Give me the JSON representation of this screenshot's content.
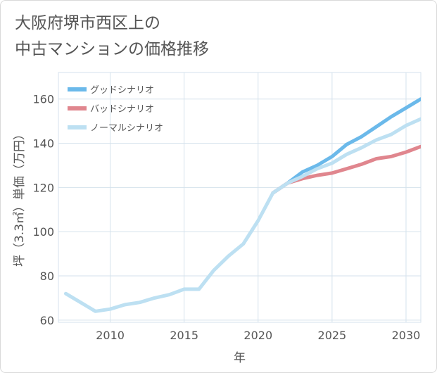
{
  "header": {
    "title_line1": "大阪府堺市西区上の",
    "title_line2": "中古マンションの価格推移"
  },
  "chart_data": {
    "type": "line",
    "title": "大阪府堺市西区上の中古マンションの価格推移",
    "xlabel": "年",
    "ylabel": "坪（3.3㎡）単価（万円）",
    "xlim": [
      2006.5,
      2031
    ],
    "ylim": [
      59,
      172
    ],
    "xticks": [
      2010,
      2015,
      2020,
      2025,
      2030
    ],
    "yticks": [
      60,
      80,
      100,
      120,
      140,
      160
    ],
    "grid": true,
    "legend_position": "top-left",
    "series": [
      {
        "name": "グッドシナリオ",
        "color": "#6bb9ea",
        "x": [
          2021,
          2022,
          2023,
          2024,
          2025,
          2026,
          2027,
          2028,
          2029,
          2030,
          2031
        ],
        "y": [
          117.5,
          122,
          127,
          130,
          134,
          139.5,
          143,
          147.5,
          152,
          156,
          160
        ]
      },
      {
        "name": "バッドシナリオ",
        "color": "#e0868e",
        "x": [
          2021,
          2022,
          2023,
          2024,
          2025,
          2026,
          2027,
          2028,
          2029,
          2030,
          2031
        ],
        "y": [
          117.5,
          122,
          124,
          125.5,
          126.5,
          128.5,
          130.5,
          133,
          134,
          136,
          138.5
        ]
      },
      {
        "name": "ノーマルシナリオ",
        "color": "#bde0f2",
        "x": [
          2007,
          2008,
          2009,
          2010,
          2011,
          2012,
          2013,
          2014,
          2015,
          2016,
          2017,
          2018,
          2019,
          2020,
          2021,
          2022,
          2023,
          2024,
          2025,
          2026,
          2027,
          2028,
          2029,
          2030,
          2031
        ],
        "y": [
          72,
          68,
          64,
          65,
          67,
          68,
          70,
          71.5,
          74,
          74,
          82.5,
          89,
          94.5,
          105,
          117.5,
          122,
          125,
          128.5,
          131,
          135,
          138,
          141.5,
          144,
          148,
          151
        ]
      }
    ]
  }
}
